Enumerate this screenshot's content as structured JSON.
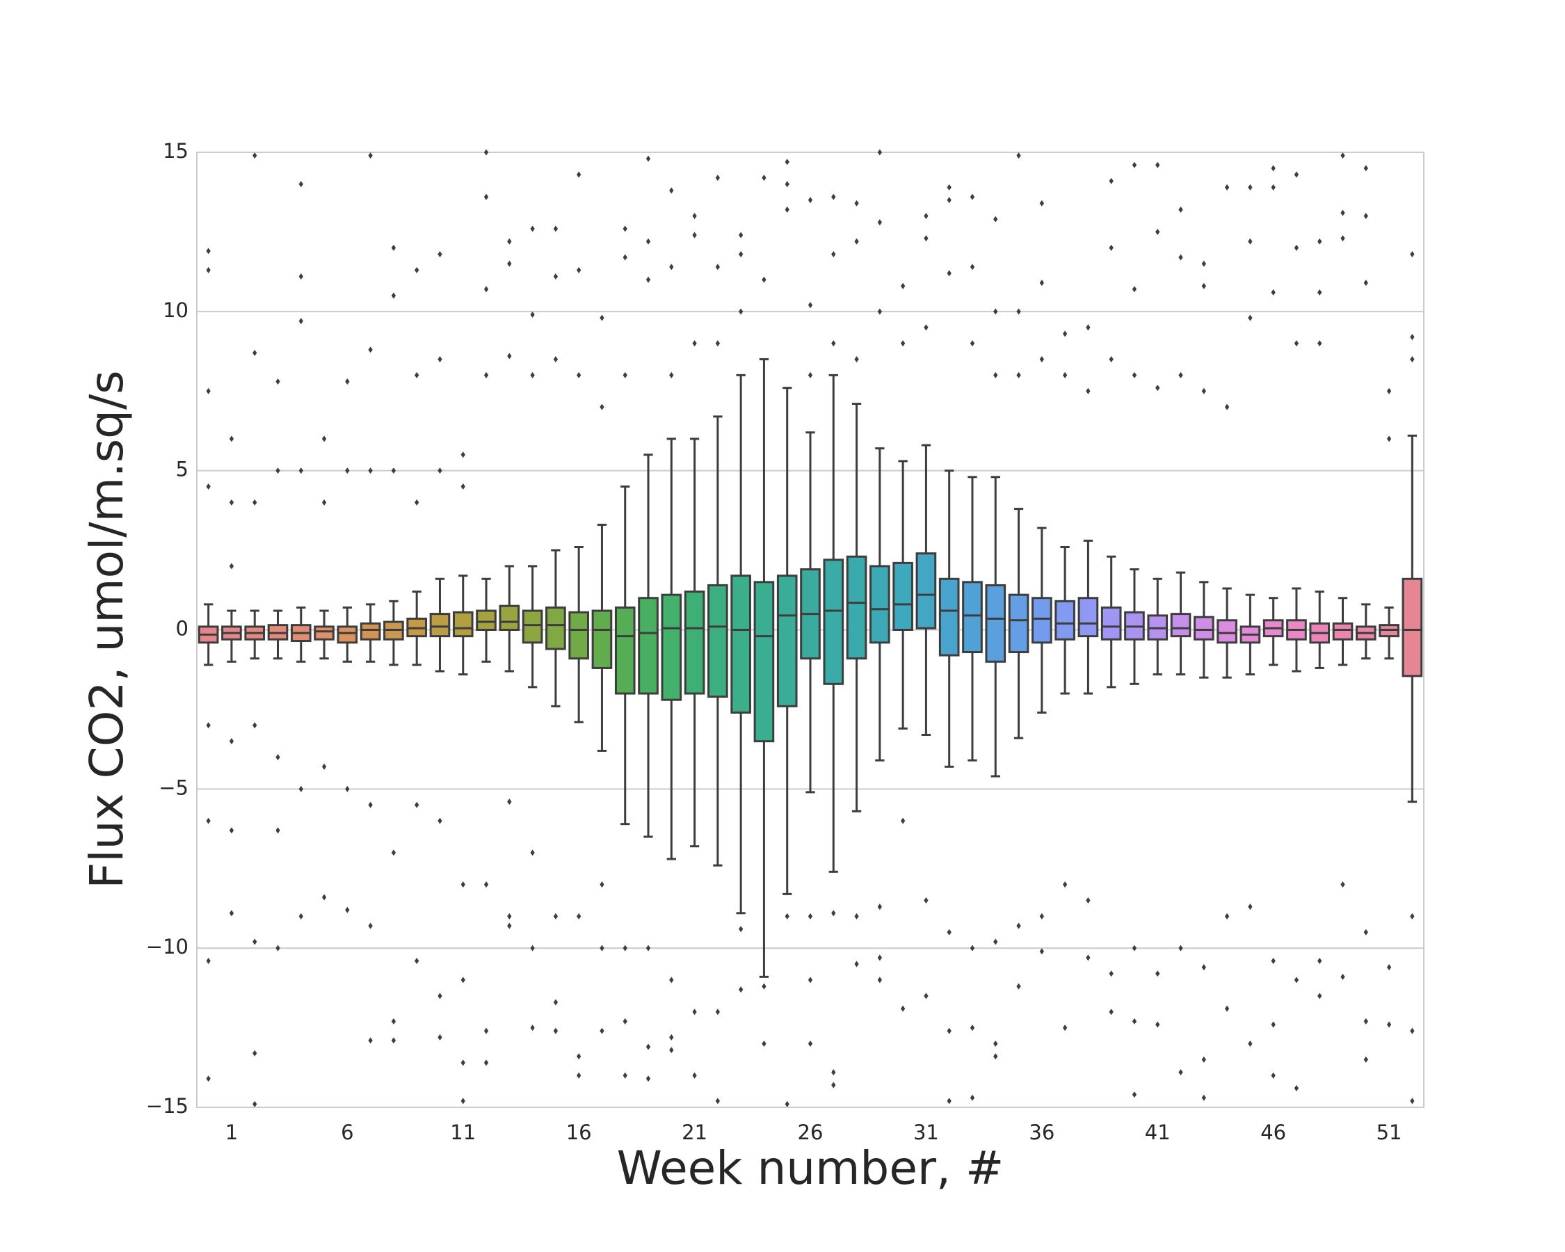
{
  "chart_data": {
    "type": "box",
    "xlabel": "Week number, #",
    "ylabel": "Flux CO2, umol/m.sq/s",
    "ylim": [
      -15,
      15
    ],
    "yticks": [
      {
        "value": -15,
        "label": "−15"
      },
      {
        "value": -10,
        "label": "−10"
      },
      {
        "value": -5,
        "label": "−5"
      },
      0,
      5,
      10,
      15
    ],
    "grid": true,
    "line_color": "#3d3d3d",
    "categories": [
      null,
      "1",
      null,
      null,
      null,
      null,
      "6",
      null,
      null,
      null,
      null,
      "11",
      null,
      null,
      null,
      null,
      "16",
      null,
      null,
      null,
      null,
      "21",
      null,
      null,
      null,
      null,
      "26",
      null,
      null,
      null,
      null,
      "31",
      null,
      null,
      null,
      null,
      "36",
      null,
      null,
      null,
      null,
      "41",
      null,
      null,
      null,
      null,
      "46",
      null,
      null,
      null,
      null,
      "51",
      null
    ],
    "colors": [
      "#e6868d",
      "#e6888a",
      "#e58a83",
      "#e38c7c",
      "#e08e73",
      "#dd906a",
      "#d99260",
      "#d39458",
      "#cc9750",
      "#c49a49",
      "#bb9d45",
      "#b19f42",
      "#a6a241",
      "#9aa441",
      "#8da642",
      "#80a844",
      "#72aa48",
      "#63ac4d",
      "#55ae55",
      "#4aaf60",
      "#43b06b",
      "#3eb076",
      "#3caf80",
      "#3baf89",
      "#3aae91",
      "#3aad98",
      "#3aac9f",
      "#3aaba6",
      "#3baaad",
      "#3ca9b4",
      "#3ea8bc",
      "#42a6c4",
      "#48a4cd",
      "#50a2d6",
      "#5aa0de",
      "#669ee6",
      "#749cec",
      "#829af0",
      "#9098f2",
      "#9e96f2",
      "#ab94f1",
      "#b892ef",
      "#c490eb",
      "#cf8ee6",
      "#d98ce0",
      "#e18ad8",
      "#e689ce",
      "#e988c4",
      "#ea87ba",
      "#ea87b0",
      "#e987a6",
      "#e8879c",
      "#e68694"
    ],
    "boxes": [
      {
        "q1": -0.4,
        "median": -0.15,
        "q3": 0.1,
        "whislo": -1.1,
        "whishi": 0.8,
        "fliers": [
          11.9,
          11.3,
          7.5,
          4.5,
          -3,
          -6,
          -10.4,
          -14.1
        ]
      },
      {
        "q1": -0.3,
        "median": -0.1,
        "q3": 0.1,
        "whislo": -1.0,
        "whishi": 0.6,
        "fliers": [
          6.0,
          4.0,
          2.0,
          -3.5,
          -6.3,
          -8.9
        ]
      },
      {
        "q1": -0.3,
        "median": -0.1,
        "q3": 0.1,
        "whislo": -0.9,
        "whishi": 0.6,
        "fliers": [
          14.9,
          8.7,
          4.0,
          -3.0,
          -9.8,
          -13.3,
          -14.9
        ]
      },
      {
        "q1": -0.3,
        "median": -0.1,
        "q3": 0.15,
        "whislo": -0.9,
        "whishi": 0.6,
        "fliers": [
          7.8,
          5.0,
          -4.0,
          -6.3,
          -10.0
        ]
      },
      {
        "q1": -0.35,
        "median": -0.1,
        "q3": 0.15,
        "whislo": -1.0,
        "whishi": 0.7,
        "fliers": [
          14.0,
          11.1,
          9.7,
          5.0,
          -5.0,
          -9.0
        ]
      },
      {
        "q1": -0.3,
        "median": -0.05,
        "q3": 0.1,
        "whislo": -0.9,
        "whishi": 0.6,
        "fliers": [
          6.0,
          4.0,
          -4.3,
          -8.4
        ]
      },
      {
        "q1": -0.4,
        "median": -0.1,
        "q3": 0.1,
        "whislo": -1.0,
        "whishi": 0.7,
        "fliers": [
          7.8,
          5.0,
          -5.0,
          -8.8
        ]
      },
      {
        "q1": -0.3,
        "median": 0.0,
        "q3": 0.2,
        "whislo": -1.0,
        "whishi": 0.8,
        "fliers": [
          14.9,
          8.8,
          5.0,
          -5.5,
          -9.3,
          -12.9
        ]
      },
      {
        "q1": -0.3,
        "median": 0.0,
        "q3": 0.25,
        "whislo": -1.1,
        "whishi": 0.9,
        "fliers": [
          12.0,
          10.5,
          5.0,
          -7.0,
          -12.3,
          -12.9
        ]
      },
      {
        "q1": -0.2,
        "median": 0.05,
        "q3": 0.35,
        "whislo": -1.1,
        "whishi": 1.2,
        "fliers": [
          11.3,
          8.0,
          4.0,
          -5.5,
          -10.4
        ]
      },
      {
        "q1": -0.2,
        "median": 0.1,
        "q3": 0.5,
        "whislo": -1.3,
        "whishi": 1.6,
        "fliers": [
          11.8,
          8.5,
          5.0,
          -6.0,
          -11.5,
          -12.8
        ]
      },
      {
        "q1": -0.2,
        "median": 0.05,
        "q3": 0.55,
        "whislo": -1.4,
        "whishi": 1.7,
        "fliers": [
          5.5,
          4.5,
          -8.0,
          -11.0,
          -13.6,
          -14.8
        ]
      },
      {
        "q1": 0.0,
        "median": 0.25,
        "q3": 0.6,
        "whislo": -1.0,
        "whishi": 1.6,
        "fliers": [
          15.0,
          13.6,
          10.7,
          8.0,
          -8.0,
          -12.6,
          -13.6
        ]
      },
      {
        "q1": 0.0,
        "median": 0.25,
        "q3": 0.75,
        "whislo": -1.3,
        "whishi": 2.0,
        "fliers": [
          12.2,
          11.5,
          8.6,
          -5.4,
          -9.0,
          -9.3
        ]
      },
      {
        "q1": -0.4,
        "median": 0.15,
        "q3": 0.6,
        "whislo": -1.8,
        "whishi": 2.0,
        "fliers": [
          12.6,
          9.9,
          8.0,
          -7.0,
          -10.0,
          -12.5
        ]
      },
      {
        "q1": -0.6,
        "median": 0.15,
        "q3": 0.7,
        "whislo": -2.4,
        "whishi": 2.5,
        "fliers": [
          12.6,
          11.1,
          8.5,
          -9.0,
          -11.7,
          -12.6
        ]
      },
      {
        "q1": -0.9,
        "median": 0.0,
        "q3": 0.55,
        "whislo": -2.9,
        "whishi": 2.6,
        "fliers": [
          14.3,
          11.3,
          8.0,
          -9.0,
          -13.4,
          -14.0
        ]
      },
      {
        "q1": -1.2,
        "median": 0.0,
        "q3": 0.6,
        "whislo": -3.8,
        "whishi": 3.3,
        "fliers": [
          9.8,
          7.0,
          -8.0,
          -10.0,
          -12.6
        ]
      },
      {
        "q1": -2.0,
        "median": -0.2,
        "q3": 0.7,
        "whislo": -6.1,
        "whishi": 4.5,
        "fliers": [
          12.6,
          11.7,
          8.0,
          -10.0,
          -12.3,
          -14.0
        ]
      },
      {
        "q1": -2.0,
        "median": -0.1,
        "q3": 1.0,
        "whislo": -6.5,
        "whishi": 5.5,
        "fliers": [
          14.8,
          12.2,
          11.0,
          -10.0,
          -13.1,
          -14.1
        ]
      },
      {
        "q1": -2.2,
        "median": 0.05,
        "q3": 1.1,
        "whislo": -7.2,
        "whishi": 6.0,
        "fliers": [
          13.8,
          11.4,
          8.0,
          -11.0,
          -12.8,
          -13.2
        ]
      },
      {
        "q1": -2.0,
        "median": 0.05,
        "q3": 1.2,
        "whislo": -6.8,
        "whishi": 6.0,
        "fliers": [
          13.0,
          12.4,
          9.0,
          -12.0,
          -14.0
        ]
      },
      {
        "q1": -2.1,
        "median": 0.1,
        "q3": 1.4,
        "whislo": -7.4,
        "whishi": 6.7,
        "fliers": [
          14.2,
          11.4,
          9.0,
          -12.0,
          -14.8
        ]
      },
      {
        "q1": -2.6,
        "median": 0.0,
        "q3": 1.7,
        "whislo": -8.9,
        "whishi": 8.0,
        "fliers": [
          12.4,
          11.8,
          10.0,
          -9.4,
          -11.3
        ]
      },
      {
        "q1": -3.5,
        "median": -0.2,
        "q3": 1.5,
        "whislo": -10.9,
        "whishi": 8.5,
        "fliers": [
          14.2,
          11.0,
          -11.2,
          -13.0
        ]
      },
      {
        "q1": -2.4,
        "median": 0.45,
        "q3": 1.7,
        "whislo": -8.3,
        "whishi": 7.6,
        "fliers": [
          14.7,
          14.0,
          13.2,
          -9.0,
          -14.9
        ]
      },
      {
        "q1": -0.9,
        "median": 0.5,
        "q3": 1.9,
        "whislo": -5.1,
        "whishi": 6.2,
        "fliers": [
          13.5,
          10.2,
          8.0,
          -9.0,
          -11.0,
          -13.0
        ]
      },
      {
        "q1": -1.7,
        "median": 0.6,
        "q3": 2.2,
        "whislo": -7.6,
        "whishi": 8.0,
        "fliers": [
          13.6,
          11.8,
          9.0,
          -8.9,
          -13.9,
          -14.3
        ]
      },
      {
        "q1": -0.9,
        "median": 0.85,
        "q3": 2.3,
        "whislo": -5.7,
        "whishi": 7.1,
        "fliers": [
          13.4,
          12.2,
          8.5,
          -9.0,
          -10.5
        ]
      },
      {
        "q1": -0.4,
        "median": 0.65,
        "q3": 2.0,
        "whislo": -4.1,
        "whishi": 5.7,
        "fliers": [
          15.0,
          12.8,
          10.0,
          -8.7,
          -10.3,
          -11.0
        ]
      },
      {
        "q1": 0.0,
        "median": 0.8,
        "q3": 2.1,
        "whislo": -3.1,
        "whishi": 5.3,
        "fliers": [
          10.8,
          9.0,
          -6.0,
          -11.9
        ]
      },
      {
        "q1": 0.05,
        "median": 1.1,
        "q3": 2.4,
        "whislo": -3.3,
        "whishi": 5.8,
        "fliers": [
          13.0,
          12.3,
          9.5,
          -8.5,
          -11.5
        ]
      },
      {
        "q1": -0.8,
        "median": 0.6,
        "q3": 1.6,
        "whislo": -4.3,
        "whishi": 5.0,
        "fliers": [
          13.9,
          13.5,
          11.2,
          -9.5,
          -12.6,
          -14.8
        ]
      },
      {
        "q1": -0.7,
        "median": 0.45,
        "q3": 1.5,
        "whislo": -4.1,
        "whishi": 4.8,
        "fliers": [
          13.6,
          11.4,
          9.0,
          -10.0,
          -12.5,
          -14.7
        ]
      },
      {
        "q1": -1.0,
        "median": 0.35,
        "q3": 1.4,
        "whislo": -4.6,
        "whishi": 4.8,
        "fliers": [
          12.9,
          10.0,
          8.0,
          -9.8,
          -13.0,
          -13.4
        ]
      },
      {
        "q1": -0.7,
        "median": 0.3,
        "q3": 1.1,
        "whislo": -3.4,
        "whishi": 3.8,
        "fliers": [
          14.9,
          10.0,
          8.0,
          -9.3,
          -11.2
        ]
      },
      {
        "q1": -0.4,
        "median": 0.35,
        "q3": 1.0,
        "whislo": -2.6,
        "whishi": 3.2,
        "fliers": [
          13.4,
          10.9,
          8.5,
          -9.0,
          -10.1
        ]
      },
      {
        "q1": -0.3,
        "median": 0.2,
        "q3": 0.9,
        "whislo": -2.0,
        "whishi": 2.6,
        "fliers": [
          9.3,
          8.0,
          -8.0,
          -12.5
        ]
      },
      {
        "q1": -0.2,
        "median": 0.2,
        "q3": 1.0,
        "whislo": -2.0,
        "whishi": 2.8,
        "fliers": [
          9.5,
          7.5,
          -8.5,
          -10.3
        ]
      },
      {
        "q1": -0.3,
        "median": 0.1,
        "q3": 0.7,
        "whislo": -1.8,
        "whishi": 2.3,
        "fliers": [
          14.1,
          12.0,
          8.5,
          -10.8,
          -12.0
        ]
      },
      {
        "q1": -0.3,
        "median": 0.1,
        "q3": 0.55,
        "whislo": -1.7,
        "whishi": 1.9,
        "fliers": [
          14.6,
          10.7,
          8.0,
          -10.0,
          -12.3,
          -14.6
        ]
      },
      {
        "q1": -0.3,
        "median": 0.05,
        "q3": 0.45,
        "whislo": -1.4,
        "whishi": 1.6,
        "fliers": [
          14.6,
          12.5,
          7.6,
          -10.8,
          -12.4
        ]
      },
      {
        "q1": -0.2,
        "median": 0.05,
        "q3": 0.5,
        "whislo": -1.4,
        "whishi": 1.8,
        "fliers": [
          13.2,
          11.7,
          8.0,
          -10.0,
          -13.9
        ]
      },
      {
        "q1": -0.3,
        "median": 0.0,
        "q3": 0.4,
        "whislo": -1.5,
        "whishi": 1.5,
        "fliers": [
          11.5,
          10.8,
          7.5,
          -10.6,
          -13.5,
          -14.7
        ]
      },
      {
        "q1": -0.4,
        "median": -0.1,
        "q3": 0.3,
        "whislo": -1.5,
        "whishi": 1.3,
        "fliers": [
          13.9,
          7.0,
          -9.0,
          -11.9
        ]
      },
      {
        "q1": -0.4,
        "median": -0.15,
        "q3": 0.1,
        "whislo": -1.4,
        "whishi": 1.1,
        "fliers": [
          13.9,
          12.2,
          9.8,
          -8.7,
          -13.0
        ]
      },
      {
        "q1": -0.2,
        "median": 0.05,
        "q3": 0.3,
        "whislo": -1.1,
        "whishi": 1.0,
        "fliers": [
          14.5,
          13.9,
          10.6,
          -10.4,
          -12.4,
          -14.0
        ]
      },
      {
        "q1": -0.3,
        "median": 0.0,
        "q3": 0.3,
        "whislo": -1.3,
        "whishi": 1.3,
        "fliers": [
          14.3,
          12.0,
          9.0,
          -11.0,
          -14.4
        ]
      },
      {
        "q1": -0.4,
        "median": -0.1,
        "q3": 0.2,
        "whislo": -1.2,
        "whishi": 1.2,
        "fliers": [
          12.2,
          10.6,
          9.0,
          -10.4,
          -11.5
        ]
      },
      {
        "q1": -0.3,
        "median": 0.0,
        "q3": 0.2,
        "whislo": -1.1,
        "whishi": 1.0,
        "fliers": [
          14.9,
          13.1,
          12.3,
          -8.0,
          -10.9
        ]
      },
      {
        "q1": -0.3,
        "median": -0.1,
        "q3": 0.1,
        "whislo": -0.9,
        "whishi": 0.8,
        "fliers": [
          14.5,
          13.0,
          10.9,
          -9.5,
          -12.3,
          -13.5
        ]
      },
      {
        "q1": -0.2,
        "median": 0.0,
        "q3": 0.15,
        "whislo": -0.9,
        "whishi": 0.7,
        "fliers": [
          7.5,
          6.0,
          -10.6,
          -12.4
        ]
      },
      {
        "q1": -1.45,
        "median": 0.0,
        "q3": 1.6,
        "whislo": -5.4,
        "whishi": 6.1,
        "fliers": [
          11.8,
          9.2,
          8.5,
          -9.0,
          -12.6,
          -14.8
        ]
      }
    ]
  }
}
